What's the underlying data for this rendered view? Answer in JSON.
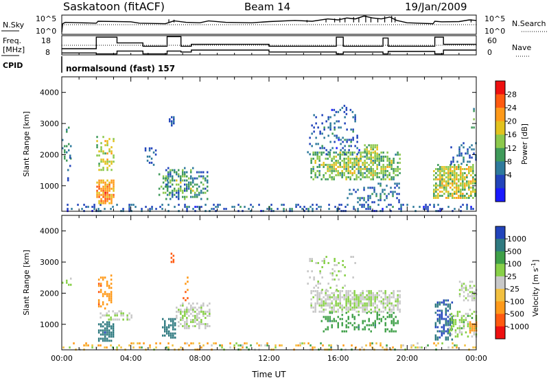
{
  "header": {
    "station": "Saskatoon (fitACF)",
    "beam": "Beam 14",
    "date": "19/Jan/2009"
  },
  "summary_panels": {
    "nsky_label": "N.Sky",
    "nsearch_label": "N.Search",
    "noise_ticks": [
      "10^5",
      "10^0"
    ],
    "freq_label": "Freq.",
    "freq_unit": "[MHz]",
    "freq_ticks": [
      "18",
      "8"
    ],
    "nave_label": "Nave",
    "nave_ticks": [
      "60",
      "0"
    ],
    "cpid_label": "CPID",
    "cpid_text": "normalsound (fast) 157"
  },
  "colors": {
    "power_scale": [
      "#1a1aff",
      "#2244bb",
      "#2e7a9c",
      "#3f9a5a",
      "#8cc84c",
      "#e2c21e",
      "#ff9a1a",
      "#ff5a10",
      "#ee1010"
    ],
    "velocity_scale": [
      "#ee1010",
      "#ff5a10",
      "#ff9a1a",
      "#f2c040",
      "#c8c8c8",
      "#88d048",
      "#3fa048",
      "#2f7a80",
      "#2244bb"
    ]
  },
  "chart_data": [
    {
      "type": "line",
      "name": "noise",
      "left_label": "N.Sky",
      "right_label": "N.Search",
      "y_ticks_left": [
        "10^5",
        "10^0"
      ],
      "y_ticks_right": [
        "10^5",
        "10^0"
      ],
      "x_range_hours": [
        0,
        24
      ],
      "series": [
        {
          "style": "solid",
          "points": [
            [
              0.0,
              0.1
            ],
            [
              0.05,
              0.55
            ],
            [
              0.2,
              0.62
            ],
            [
              1.0,
              0.6
            ],
            [
              2.0,
              0.58
            ],
            [
              2.1,
              0.68
            ],
            [
              4.0,
              0.65
            ],
            [
              4.5,
              0.58
            ],
            [
              6.0,
              0.55
            ],
            [
              6.5,
              0.7
            ],
            [
              7.2,
              0.62
            ],
            [
              8.0,
              0.6
            ],
            [
              8.5,
              0.7
            ],
            [
              9.5,
              0.62
            ],
            [
              11.0,
              0.6
            ],
            [
              12.0,
              0.66
            ],
            [
              13.5,
              0.72
            ],
            [
              14.5,
              0.68
            ],
            [
              15.4,
              0.8
            ],
            [
              16.0,
              0.75
            ],
            [
              16.5,
              0.85
            ],
            [
              17.0,
              0.8
            ],
            [
              17.5,
              0.95
            ],
            [
              18.0,
              0.85
            ],
            [
              18.5,
              0.8
            ],
            [
              19.0,
              0.9
            ],
            [
              19.4,
              0.72
            ],
            [
              20.0,
              0.6
            ],
            [
              21.5,
              0.55
            ],
            [
              21.6,
              0.68
            ],
            [
              22.0,
              0.65
            ],
            [
              23.0,
              0.66
            ],
            [
              23.6,
              0.75
            ],
            [
              24.0,
              0.72
            ]
          ]
        },
        {
          "style": "dotted",
          "points": [
            [
              0,
              0.5
            ],
            [
              24,
              0.5
            ]
          ]
        }
      ]
    },
    {
      "type": "line",
      "name": "frequency-nave",
      "left_label": "Freq. [MHz]",
      "right_label": "Nave",
      "y_ticks_left": [
        "18",
        "8"
      ],
      "y_ticks_right": [
        "60",
        "0"
      ],
      "x_range_hours": [
        0,
        24
      ],
      "series": [
        {
          "style": "solid",
          "points": [
            [
              0,
              0.32
            ],
            [
              2.0,
              0.32
            ],
            [
              2.0,
              0.92
            ],
            [
              3.2,
              0.92
            ],
            [
              3.2,
              0.62
            ],
            [
              4.7,
              0.62
            ],
            [
              4.7,
              0.45
            ],
            [
              6.1,
              0.45
            ],
            [
              6.1,
              0.95
            ],
            [
              6.9,
              0.95
            ],
            [
              6.9,
              0.45
            ],
            [
              7.5,
              0.45
            ],
            [
              7.5,
              0.55
            ],
            [
              12.0,
              0.55
            ],
            [
              12.0,
              0.45
            ],
            [
              15.9,
              0.45
            ],
            [
              15.9,
              0.92
            ],
            [
              16.3,
              0.92
            ],
            [
              16.3,
              0.45
            ],
            [
              18.6,
              0.45
            ],
            [
              18.6,
              0.88
            ],
            [
              18.9,
              0.88
            ],
            [
              18.9,
              0.45
            ],
            [
              21.6,
              0.45
            ],
            [
              21.6,
              0.92
            ],
            [
              22.1,
              0.92
            ],
            [
              22.1,
              0.55
            ],
            [
              24,
              0.55
            ]
          ]
        },
        {
          "style": "solid",
          "points": [
            [
              0,
              0.1
            ],
            [
              2.0,
              0.1
            ],
            [
              2.0,
              0.05
            ],
            [
              3.2,
              0.05
            ],
            [
              3.2,
              0.2
            ],
            [
              4.7,
              0.2
            ],
            [
              4.7,
              0.05
            ],
            [
              6.1,
              0.05
            ],
            [
              6.1,
              0.2
            ],
            [
              6.9,
              0.2
            ],
            [
              6.9,
              0.15
            ],
            [
              7.5,
              0.15
            ],
            [
              7.5,
              0.25
            ],
            [
              12.0,
              0.25
            ],
            [
              12.0,
              0.15
            ],
            [
              15.9,
              0.15
            ],
            [
              15.9,
              0.05
            ],
            [
              16.3,
              0.05
            ],
            [
              16.3,
              0.15
            ],
            [
              18.6,
              0.15
            ],
            [
              18.6,
              0.05
            ],
            [
              18.9,
              0.05
            ],
            [
              18.9,
              0.18
            ],
            [
              21.6,
              0.18
            ],
            [
              21.6,
              0.05
            ],
            [
              22.1,
              0.05
            ],
            [
              22.1,
              0.25
            ],
            [
              24,
              0.25
            ]
          ]
        },
        {
          "style": "dotted",
          "points": [
            [
              0,
              0.5
            ],
            [
              24,
              0.5
            ]
          ]
        }
      ]
    },
    {
      "type": "heatmap",
      "name": "power",
      "title": "",
      "ylabel": "Slant Range [km]",
      "xlabel": "",
      "x_range_hours": [
        0,
        24
      ],
      "ylim": [
        180,
        4500
      ],
      "y_ticks": [
        1000,
        2000,
        3000,
        4000
      ],
      "colorbar_label": "Power [dB]",
      "colorbar_ticks": [
        "28",
        "24",
        "20",
        "16",
        "12",
        "8",
        "4"
      ],
      "colorbar_range": [
        0,
        32
      ],
      "regions": [
        {
          "t0": 0.05,
          "t1": 24,
          "r0": 200,
          "r1": 420,
          "v0": 2,
          "v1": 14,
          "density": 0.3
        },
        {
          "t0": 0.0,
          "t1": 0.5,
          "r0": 1800,
          "r1": 2900,
          "v0": 6,
          "v1": 16,
          "density": 0.25
        },
        {
          "t0": 0.2,
          "t1": 0.6,
          "r0": 1200,
          "r1": 2000,
          "v0": 4,
          "v1": 12,
          "density": 0.25
        },
        {
          "t0": 2.0,
          "t1": 3.0,
          "r0": 450,
          "r1": 1200,
          "v0": 18,
          "v1": 30,
          "density": 0.9
        },
        {
          "t0": 2.0,
          "t1": 3.0,
          "r0": 1500,
          "r1": 2600,
          "v0": 10,
          "v1": 26,
          "density": 0.5
        },
        {
          "t0": 6.0,
          "t1": 8.5,
          "r0": 600,
          "r1": 1600,
          "v0": 4,
          "v1": 22,
          "density": 0.55
        },
        {
          "t0": 5.6,
          "t1": 6.3,
          "r0": 700,
          "r1": 1400,
          "v0": 6,
          "v1": 20,
          "density": 0.4
        },
        {
          "t0": 6.2,
          "t1": 6.5,
          "r0": 2900,
          "r1": 3300,
          "v0": 4,
          "v1": 10,
          "density": 0.7
        },
        {
          "t0": 4.8,
          "t1": 5.5,
          "r0": 1700,
          "r1": 2300,
          "v0": 4,
          "v1": 10,
          "density": 0.3
        },
        {
          "t0": 14.4,
          "t1": 19.6,
          "r0": 1200,
          "r1": 2100,
          "v0": 8,
          "v1": 24,
          "density": 0.75
        },
        {
          "t0": 14.2,
          "t1": 17.2,
          "r0": 2000,
          "r1": 3300,
          "v0": 2,
          "v1": 14,
          "density": 0.25
        },
        {
          "t0": 17.5,
          "t1": 18.3,
          "r0": 1900,
          "r1": 2400,
          "v0": 12,
          "v1": 22,
          "density": 0.6
        },
        {
          "t0": 16.5,
          "t1": 19.5,
          "r0": 500,
          "r1": 1100,
          "v0": 4,
          "v1": 14,
          "density": 0.35
        },
        {
          "t0": 15.6,
          "t1": 16.8,
          "r0": 3300,
          "r1": 3600,
          "v0": 2,
          "v1": 10,
          "density": 0.3
        },
        {
          "t0": 21.5,
          "t1": 24,
          "r0": 600,
          "r1": 1700,
          "v0": 10,
          "v1": 28,
          "density": 0.8
        },
        {
          "t0": 22.5,
          "t1": 24,
          "r0": 1700,
          "r1": 2400,
          "v0": 4,
          "v1": 14,
          "density": 0.45
        },
        {
          "t0": 23.7,
          "t1": 23.9,
          "r0": 2800,
          "r1": 3500,
          "v0": 10,
          "v1": 16,
          "density": 0.4
        }
      ]
    },
    {
      "type": "heatmap",
      "name": "velocity",
      "title": "",
      "ylabel": "Slant Range [km]",
      "xlabel": "Time UT",
      "x_range_hours": [
        0,
        24
      ],
      "x_ticks": [
        "00:00",
        "04:00",
        "08:00",
        "12:00",
        "16:00",
        "20:00",
        "00:00"
      ],
      "ylim": [
        180,
        4500
      ],
      "y_ticks": [
        1000,
        2000,
        3000,
        4000
      ],
      "colorbar_label": "Velocity [m s^-1]",
      "colorbar_ticks": [
        "1000",
        "500",
        "100",
        "25",
        "-25",
        "-100",
        "-500",
        "-1000"
      ],
      "color_bins": [
        -1000,
        -500,
        -100,
        -25,
        0,
        25,
        100,
        500,
        1000
      ],
      "regions": [
        {
          "t0": 0.05,
          "t1": 24,
          "r0": 200,
          "r1": 420,
          "v0": -200,
          "v1": 150,
          "density": 0.28
        },
        {
          "t0": 0.0,
          "t1": 0.5,
          "r0": 1800,
          "r1": 2500,
          "v0": -10,
          "v1": 40,
          "density": 0.2
        },
        {
          "t0": 2.1,
          "t1": 3.0,
          "r0": 500,
          "r1": 1100,
          "v0": 80,
          "v1": 600,
          "density": 0.85
        },
        {
          "t0": 2.1,
          "t1": 2.9,
          "r0": 1500,
          "r1": 2600,
          "v0": -600,
          "v1": -80,
          "density": 0.5
        },
        {
          "t0": 2.2,
          "t1": 4.0,
          "r0": 1150,
          "r1": 1450,
          "v0": -20,
          "v1": 20,
          "density": 0.55
        },
        {
          "t0": 5.8,
          "t1": 6.6,
          "r0": 600,
          "r1": 1200,
          "v0": 80,
          "v1": 600,
          "density": 0.6
        },
        {
          "t0": 6.6,
          "t1": 8.6,
          "r0": 900,
          "r1": 1700,
          "v0": -20,
          "v1": 20,
          "density": 0.7
        },
        {
          "t0": 6.3,
          "t1": 6.5,
          "r0": 3000,
          "r1": 3300,
          "v0": -700,
          "v1": -400,
          "density": 0.8
        },
        {
          "t0": 7.0,
          "t1": 7.3,
          "r0": 1800,
          "r1": 2600,
          "v0": -700,
          "v1": -300,
          "density": 0.4
        },
        {
          "t0": 14.4,
          "t1": 19.6,
          "r0": 1400,
          "r1": 2100,
          "v0": -20,
          "v1": 20,
          "density": 0.8
        },
        {
          "t0": 15.0,
          "t1": 19.5,
          "r0": 800,
          "r1": 1400,
          "v0": 30,
          "v1": 120,
          "density": 0.35
        },
        {
          "t0": 14.2,
          "t1": 17.0,
          "r0": 2100,
          "r1": 3200,
          "v0": -30,
          "v1": 30,
          "density": 0.2
        },
        {
          "t0": 21.6,
          "t1": 22.6,
          "r0": 500,
          "r1": 1800,
          "v0": 100,
          "v1": 900,
          "density": 0.7
        },
        {
          "t0": 22.4,
          "t1": 24,
          "r0": 600,
          "r1": 1500,
          "v0": -20,
          "v1": 40,
          "density": 0.5
        },
        {
          "t0": 23.0,
          "t1": 24,
          "r0": 1800,
          "r1": 2400,
          "v0": -20,
          "v1": 20,
          "density": 0.6
        },
        {
          "t0": 23.6,
          "t1": 24,
          "r0": 700,
          "r1": 1100,
          "v0": -500,
          "v1": -100,
          "density": 0.7
        }
      ]
    }
  ]
}
